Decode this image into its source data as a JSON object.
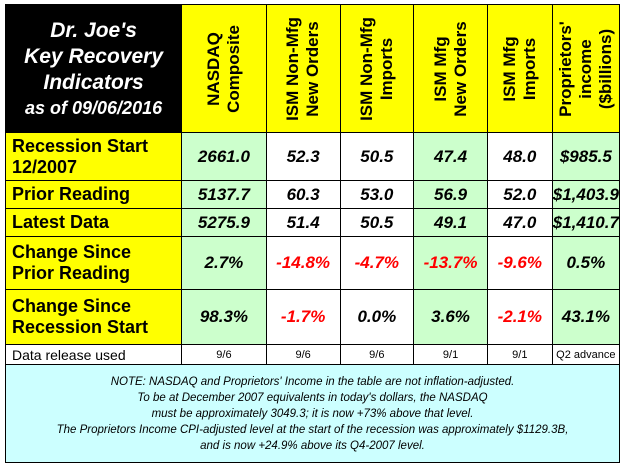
{
  "title": {
    "line1": "Dr. Joe's",
    "line2": "Key Recovery",
    "line3": "Indicators",
    "date": "as of 09/06/2016"
  },
  "columns": [
    {
      "line1": "NASDAQ",
      "line2": "Composite"
    },
    {
      "line1": "ISM Non-Mfg",
      "line2": "New Orders"
    },
    {
      "line1": "ISM Non-Mfg",
      "line2": "Imports"
    },
    {
      "line1": "ISM Mfg",
      "line2": "New Orders"
    },
    {
      "line1": "ISM Mfg",
      "line2": "Imports"
    },
    {
      "line1": "Proprietors'",
      "line2": "income",
      "line3": "($billions)"
    }
  ],
  "rows": [
    {
      "label1": "Recession Start",
      "label2": "12/2007",
      "values": [
        "2661.0",
        "52.3",
        "50.5",
        "47.4",
        "48.0",
        "$985.5"
      ]
    },
    {
      "label1": "Prior Reading",
      "label2": "",
      "values": [
        "5137.7",
        "60.3",
        "53.0",
        "56.9",
        "52.0",
        "$1,403.9"
      ]
    },
    {
      "label1": "Latest Data",
      "label2": "",
      "values": [
        "5275.9",
        "51.4",
        "50.5",
        "49.1",
        "47.0",
        "$1,410.7"
      ]
    },
    {
      "label1": "Change Since",
      "label2": "Prior Reading",
      "values": [
        "2.7%",
        "-14.8%",
        "-4.7%",
        "-13.7%",
        "-9.6%",
        "0.5%"
      ]
    },
    {
      "label1": "Change Since",
      "label2": "Recession Start",
      "values": [
        "98.3%",
        "-1.7%",
        "0.0%",
        "3.6%",
        "-2.1%",
        "43.1%"
      ]
    }
  ],
  "release": {
    "label": "Data release used",
    "values": [
      "9/6",
      "9/6",
      "9/6",
      "9/1",
      "9/1",
      "Q2 advance"
    ]
  },
  "note": {
    "line1": "NOTE: NASDAQ and Proprietors' Income in the table are not inflation-adjusted.",
    "line2": "To be at December 2007 equivalents in today's dollars, the NASDAQ",
    "line3": "must be approximately 3049.3; it is now +73% above that level.",
    "line4": "The Proprietors Income CPI-adjusted level at the start of the recession was approximately $1129.3B,",
    "line5": "and is now +24.9% above its Q4-2007 level."
  },
  "colors": {
    "header_yellow": "#ffff00",
    "cell_green": "#ccffcc",
    "note_cyan": "#ccffff",
    "negative_red": "#ff0000",
    "title_black": "#000000"
  }
}
